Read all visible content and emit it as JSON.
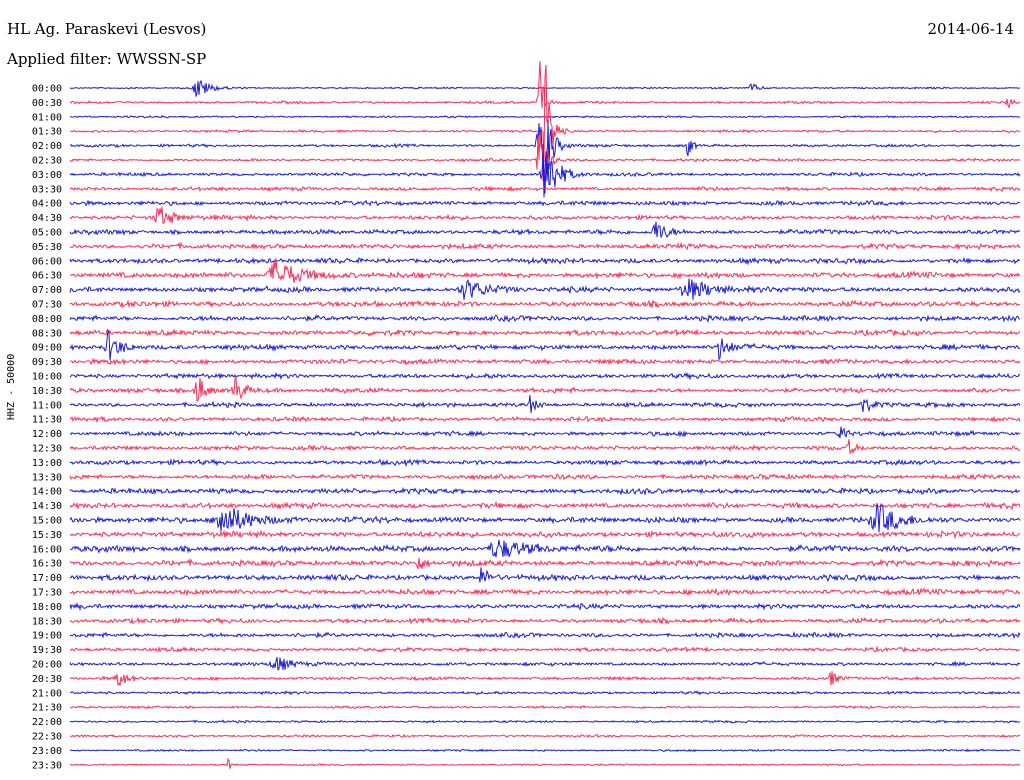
{
  "header": {
    "station": "HL Ag. Paraskevi (Lesvos)",
    "filter": "Applied filter: WWSSN-SP",
    "date": "2014-06-14"
  },
  "chart_data": {
    "type": "line",
    "title": "HL Ag. Paraskevi (Lesvos)",
    "subtitle": "Applied filter: WWSSN-SP",
    "ylabel": "HHZ - 50000",
    "xlabel": "",
    "date": "2014-06-14",
    "categories": [
      "00:00",
      "00:30",
      "01:00",
      "01:30",
      "02:00",
      "02:30",
      "03:00",
      "03:30",
      "04:00",
      "04:30",
      "05:00",
      "05:30",
      "06:00",
      "06:30",
      "07:00",
      "07:30",
      "08:00",
      "08:30",
      "09:00",
      "09:30",
      "10:00",
      "10:30",
      "11:00",
      "11:30",
      "12:00",
      "12:30",
      "13:00",
      "13:30",
      "14:00",
      "14:30",
      "15:00",
      "15:30",
      "16:00",
      "16:30",
      "17:00",
      "17:30",
      "18:00",
      "18:30",
      "19:00",
      "19:30",
      "20:00",
      "20:30",
      "21:00",
      "21:30",
      "22:00",
      "22:30",
      "23:00",
      "23:30"
    ],
    "colors": [
      "#1a1adc",
      "#ff2d55"
    ],
    "grid": false,
    "noise_level": [
      0.6,
      0.9,
      0.7,
      0.9,
      1.0,
      1.0,
      1.2,
      1.4,
      1.6,
      1.6,
      1.7,
      1.8,
      1.9,
      2.0,
      2.0,
      2.0,
      1.9,
      1.9,
      1.9,
      1.8,
      1.7,
      1.7,
      1.6,
      1.6,
      1.6,
      1.6,
      1.7,
      1.8,
      1.9,
      2.0,
      2.1,
      2.2,
      2.2,
      2.1,
      2.1,
      2.0,
      1.8,
      1.7,
      1.6,
      1.4,
      1.3,
      1.2,
      1.0,
      0.9,
      0.8,
      0.8,
      0.7,
      0.6
    ],
    "events": [
      {
        "row": 0,
        "minute": 4.0,
        "amp": 12,
        "dur": 0.6
      },
      {
        "row": 0,
        "minute": 21.5,
        "amp": 5,
        "dur": 0.4
      },
      {
        "row": 1,
        "minute": 29.6,
        "amp": 10,
        "dur": 0.2
      },
      {
        "row": 1,
        "minute": 14.8,
        "amp": 60,
        "dur": 0.2
      },
      {
        "row": 4,
        "minute": 15.0,
        "amp": 45,
        "dur": 0.3
      },
      {
        "row": 4,
        "minute": 19.5,
        "amp": 14,
        "dur": 0.2
      },
      {
        "row": 4,
        "minute": 14.8,
        "amp": 25,
        "dur": 0.5
      },
      {
        "row": 3,
        "minute": 15.0,
        "amp": 80,
        "dur": 0.3
      },
      {
        "row": 5,
        "minute": 14.8,
        "amp": 55,
        "dur": 0.3
      },
      {
        "row": 6,
        "minute": 15.0,
        "amp": 40,
        "dur": 0.6
      },
      {
        "row": 9,
        "minute": 2.8,
        "amp": 12,
        "dur": 0.7
      },
      {
        "row": 10,
        "minute": 18.5,
        "amp": 12,
        "dur": 0.6
      },
      {
        "row": 13,
        "minute": 6.5,
        "amp": 16,
        "dur": 1.3
      },
      {
        "row": 14,
        "minute": 12.5,
        "amp": 10,
        "dur": 1.0
      },
      {
        "row": 14,
        "minute": 19.5,
        "amp": 11,
        "dur": 1.2
      },
      {
        "row": 18,
        "minute": 1.2,
        "amp": 16,
        "dur": 0.6
      },
      {
        "row": 18,
        "minute": 20.5,
        "amp": 12,
        "dur": 0.5
      },
      {
        "row": 21,
        "minute": 4.0,
        "amp": 20,
        "dur": 0.4
      },
      {
        "row": 21,
        "minute": 5.2,
        "amp": 18,
        "dur": 0.4
      },
      {
        "row": 22,
        "minute": 14.5,
        "amp": 10,
        "dur": 0.3
      },
      {
        "row": 22,
        "minute": 25.0,
        "amp": 8,
        "dur": 0.6
      },
      {
        "row": 24,
        "minute": 24.3,
        "amp": 18,
        "dur": 0.2
      },
      {
        "row": 25,
        "minute": 24.6,
        "amp": 8,
        "dur": 0.3
      },
      {
        "row": 30,
        "minute": 4.8,
        "amp": 18,
        "dur": 1.3
      },
      {
        "row": 30,
        "minute": 25.5,
        "amp": 15,
        "dur": 1.2
      },
      {
        "row": 32,
        "minute": 13.5,
        "amp": 10,
        "dur": 1.5
      },
      {
        "row": 33,
        "minute": 11.0,
        "amp": 9,
        "dur": 0.3
      },
      {
        "row": 34,
        "minute": 13.0,
        "amp": 11,
        "dur": 0.4
      },
      {
        "row": 40,
        "minute": 6.5,
        "amp": 8,
        "dur": 0.8
      },
      {
        "row": 41,
        "minute": 24.0,
        "amp": 9,
        "dur": 0.3
      },
      {
        "row": 41,
        "minute": 1.5,
        "amp": 8,
        "dur": 0.5
      },
      {
        "row": 47,
        "minute": 5.0,
        "amp": 10,
        "dur": 0.1
      }
    ]
  }
}
